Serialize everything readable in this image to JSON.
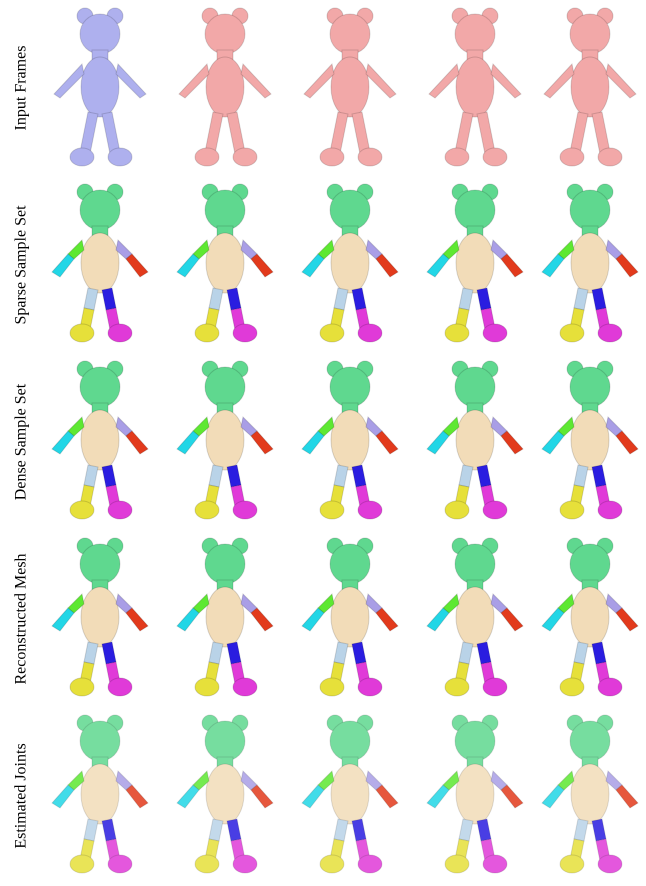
{
  "rows": [
    {
      "label": "Input Frames"
    },
    {
      "label": "Sparse Sample Set"
    },
    {
      "label": "Dense Sample Set"
    },
    {
      "label": "Reconstructed Mesh"
    },
    {
      "label": "Estimated Joints"
    }
  ]
}
